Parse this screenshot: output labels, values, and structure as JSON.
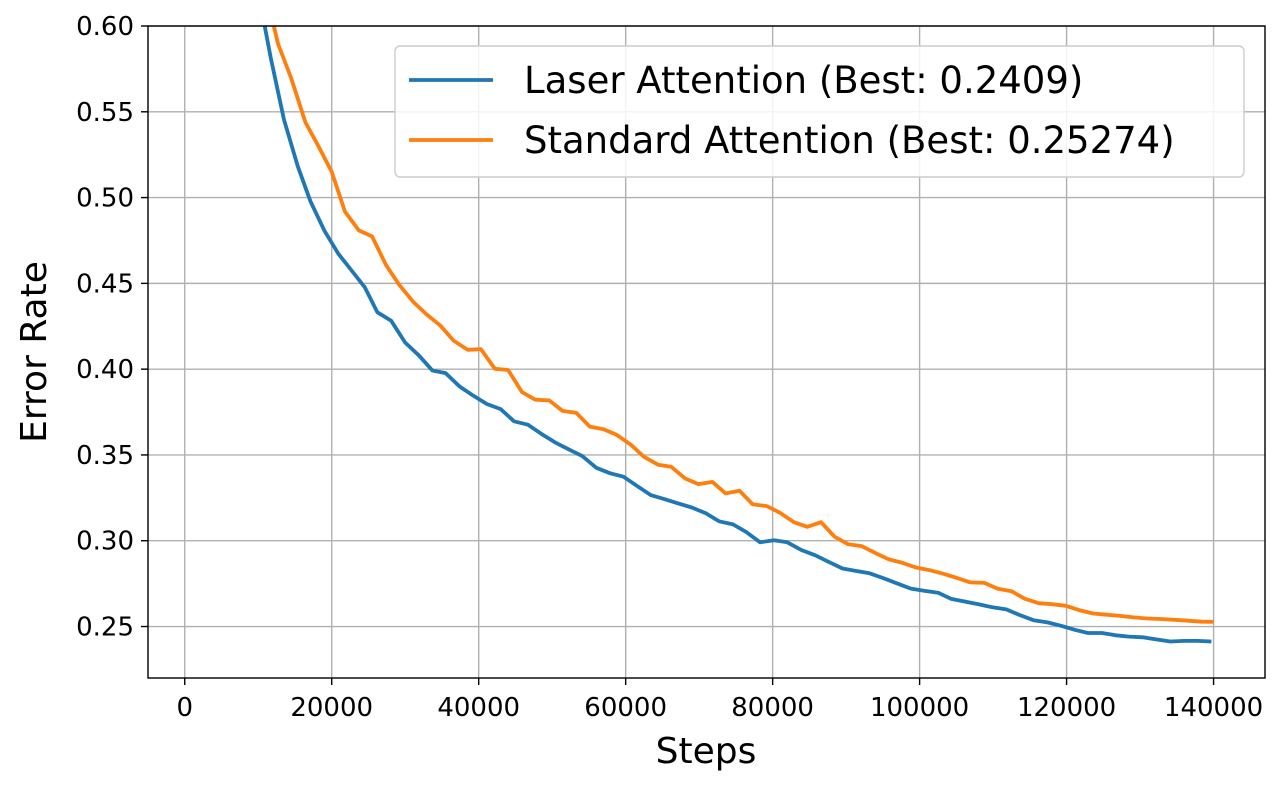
{
  "chart_data": {
    "type": "line",
    "xlabel": "Steps",
    "ylabel": "Error Rate",
    "xlim": [
      -5000,
      147000
    ],
    "ylim": [
      0.22,
      0.6
    ],
    "xticks": [
      0,
      20000,
      40000,
      60000,
      80000,
      100000,
      120000,
      140000
    ],
    "xtick_labels": [
      "0",
      "20000",
      "40000",
      "60000",
      "80000",
      "100000",
      "120000",
      "140000"
    ],
    "yticks": [
      0.25,
      0.3,
      0.35,
      0.4,
      0.45,
      0.5,
      0.55,
      0.6
    ],
    "ytick_labels": [
      "0.25",
      "0.30",
      "0.35",
      "0.40",
      "0.45",
      "0.50",
      "0.55",
      "0.60"
    ],
    "grid": true,
    "legend_position": "top-right",
    "series": [
      {
        "name": "Laser Attention (Best: 0.2409)",
        "color": "#1f77b4",
        "x": [
          10000,
          11700,
          13500,
          15400,
          17100,
          19000,
          20900,
          22600,
          24500,
          26200,
          28100,
          30000,
          31900,
          33700,
          35500,
          37400,
          39300,
          41100,
          43000,
          44800,
          46700,
          48600,
          50400,
          52300,
          54100,
          56000,
          57900,
          59700,
          61600,
          63400,
          65300,
          67100,
          69000,
          70900,
          72700,
          74600,
          76400,
          78300,
          80200,
          82000,
          83900,
          85800,
          87600,
          89500,
          91300,
          93200,
          95000,
          96900,
          98800,
          100600,
          102500,
          104300,
          106200,
          108100,
          109900,
          111800,
          113600,
          115500,
          117400,
          119200,
          121100,
          122900,
          124800,
          126700,
          128500,
          130400,
          132200,
          134100,
          136000,
          137800,
          139700
        ],
        "y": [
          0.62,
          0.5816,
          0.5454,
          0.518,
          0.4979,
          0.4807,
          0.4673,
          0.4581,
          0.4477,
          0.4332,
          0.4282,
          0.4155,
          0.4078,
          0.3992,
          0.3977,
          0.3899,
          0.3845,
          0.3797,
          0.3767,
          0.3696,
          0.3676,
          0.3621,
          0.3573,
          0.3531,
          0.3493,
          0.3425,
          0.3393,
          0.3373,
          0.3318,
          0.3266,
          0.3242,
          0.3218,
          0.3194,
          0.316,
          0.3113,
          0.3095,
          0.3051,
          0.2991,
          0.3003,
          0.2991,
          0.2946,
          0.2915,
          0.2877,
          0.2838,
          0.2824,
          0.281,
          0.2783,
          0.2752,
          0.2721,
          0.2709,
          0.2697,
          0.2661,
          0.2645,
          0.2629,
          0.2612,
          0.26,
          0.2567,
          0.2537,
          0.2524,
          0.2505,
          0.2481,
          0.2462,
          0.2462,
          0.2449,
          0.2441,
          0.2437,
          0.2425,
          0.2413,
          0.2416,
          0.2416,
          0.2413
        ]
      },
      {
        "name": "Standard Attention (Best: 0.25274)",
        "color": "#ff7f0e",
        "x": [
          11000,
          12700,
          14500,
          16400,
          18200,
          20000,
          21800,
          23700,
          25500,
          27400,
          29200,
          31100,
          32900,
          34800,
          36600,
          38500,
          40300,
          42200,
          44000,
          45900,
          47700,
          49600,
          51400,
          53300,
          55100,
          57000,
          58800,
          60700,
          62500,
          64400,
          66200,
          68100,
          69900,
          71800,
          73600,
          75500,
          77300,
          79200,
          81000,
          82900,
          84700,
          86600,
          88400,
          90300,
          92100,
          94000,
          95800,
          97700,
          99500,
          101400,
          103200,
          105100,
          106900,
          108800,
          110600,
          112500,
          114300,
          116200,
          118000,
          119900,
          121700,
          123600,
          125400,
          127300,
          129100,
          131000,
          132800,
          134700,
          136500,
          138400,
          140000
        ],
        "y": [
          0.62,
          0.5895,
          0.5694,
          0.544,
          0.5299,
          0.5151,
          0.4919,
          0.4808,
          0.4774,
          0.4606,
          0.4491,
          0.4392,
          0.4319,
          0.4253,
          0.4166,
          0.4113,
          0.4117,
          0.4002,
          0.3995,
          0.3866,
          0.3822,
          0.3818,
          0.3757,
          0.3745,
          0.3665,
          0.365,
          0.3617,
          0.356,
          0.3489,
          0.3443,
          0.3431,
          0.3363,
          0.333,
          0.3343,
          0.3276,
          0.3291,
          0.3212,
          0.3202,
          0.3163,
          0.3108,
          0.3081,
          0.3108,
          0.3024,
          0.2979,
          0.2969,
          0.2928,
          0.2892,
          0.2871,
          0.2844,
          0.2828,
          0.2808,
          0.2783,
          0.2757,
          0.2754,
          0.2721,
          0.2706,
          0.2662,
          0.2636,
          0.263,
          0.2621,
          0.2596,
          0.2576,
          0.2569,
          0.2562,
          0.2553,
          0.2547,
          0.2544,
          0.2539,
          0.2534,
          0.2528,
          0.2527
        ]
      }
    ]
  }
}
